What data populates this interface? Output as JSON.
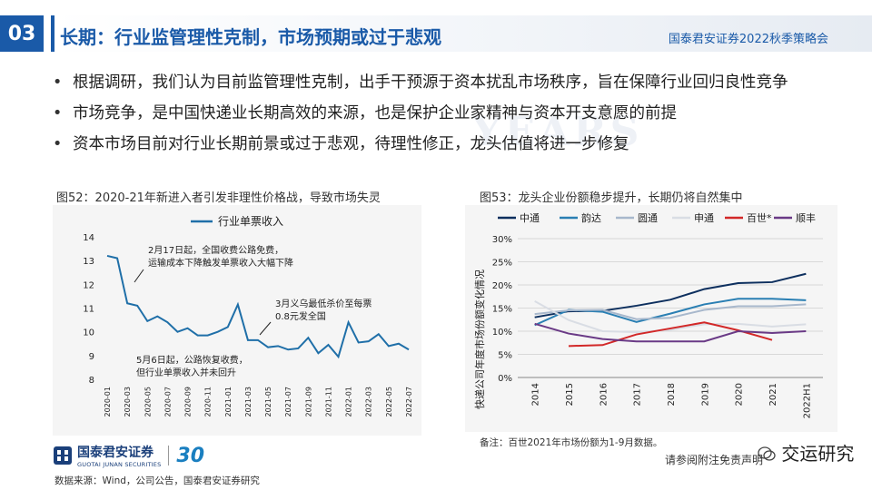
{
  "header": {
    "section_number": "03",
    "title": "长期：行业监管理性克制，市场预期或过于悲观",
    "corp_label": "国泰君安证券2022秋季策略会"
  },
  "background_text": "YEARS",
  "bullets": [
    "根据调研，我们认为目前监管理性克制，出手干预源于资本扰乱市场秩序，旨在保障行业回归良性竞争",
    "市场竞争，是中国快递业长期高效的来源，也是保护企业家精神与资本开支意愿的前提",
    "资本市场目前对行业长期前景或过于悲观，待理性修正，龙头估值将进一步修复"
  ],
  "bullet_symbol": "•",
  "figure52": {
    "caption": "图52：2020-21年新进入者引发非理性价格战，导致市场失灵",
    "annotations": [
      "2月17日起，全国收费公路免费，",
      "运输成本下降触发单票收入大幅下降",
      "3月义乌最低杀价至每票",
      "0.8元发全国",
      "5月6日起，公路恢复收费，",
      "但行业单票收入并未回升"
    ]
  },
  "figure53": {
    "caption": "图53：龙头企业份额稳步提升，长期仍将自然集中",
    "ylabel": "快递公司年度市场份额变化情况",
    "note": "备注：百世2021年市场份额为1-9月数据。"
  },
  "chart_data": [
    {
      "type": "line",
      "title": "",
      "legend": [
        "行业单票收入"
      ],
      "x": [
        "2020-01",
        "2020-02",
        "2020-03",
        "2020-04",
        "2020-05",
        "2020-06",
        "2020-07",
        "2020-08",
        "2020-09",
        "2020-10",
        "2020-11",
        "2020-12",
        "2021-01",
        "2021-02",
        "2021-03",
        "2021-04",
        "2021-05",
        "2021-06",
        "2021-07",
        "2021-08",
        "2021-09",
        "2021-10",
        "2021-11",
        "2021-12",
        "2022-01",
        "2022-02",
        "2022-03",
        "2022-04",
        "2022-05",
        "2022-06",
        "2022-07"
      ],
      "xticks": [
        "2020-01",
        "2020-03",
        "2020-05",
        "2020-07",
        "2020-09",
        "2020-11",
        "2021-01",
        "2021-03",
        "2021-05",
        "2021-07",
        "2021-09",
        "2021-11",
        "2022-01",
        "2022-03",
        "2022-05",
        "2022-07"
      ],
      "series": [
        {
          "name": "行业单票收入",
          "color": "#1f6fa8",
          "values": [
            13.2,
            13.1,
            11.2,
            11.1,
            10.45,
            10.65,
            10.4,
            10.0,
            10.15,
            9.85,
            9.85,
            10.0,
            10.2,
            11.15,
            9.65,
            9.65,
            9.35,
            9.4,
            9.25,
            9.3,
            9.75,
            9.1,
            9.45,
            8.95,
            10.4,
            9.55,
            9.6,
            9.9,
            9.4,
            9.5,
            9.25
          ]
        }
      ],
      "ylim": [
        8,
        14
      ],
      "yticks": [
        8,
        9,
        10,
        11,
        12,
        13,
        14
      ]
    },
    {
      "type": "line",
      "title": "",
      "ylabel": "快递公司年度市场份额变化情况",
      "x": [
        "2014",
        "2015",
        "2016",
        "2017",
        "2018",
        "2019",
        "2020",
        "2021",
        "2022H1"
      ],
      "ylim": [
        0,
        30
      ],
      "yticks": [
        "0%",
        "5%",
        "10%",
        "15%",
        "20%",
        "25%",
        "30%"
      ],
      "series": [
        {
          "name": "中通",
          "color": "#0d2f5e",
          "values": [
            13.0,
            14.3,
            14.4,
            15.5,
            16.8,
            19.1,
            20.4,
            20.6,
            22.4
          ]
        },
        {
          "name": "韵达",
          "color": "#2a7fb3",
          "values": [
            11.3,
            14.6,
            14.2,
            12.0,
            13.8,
            15.8,
            17.0,
            17.0,
            16.7
          ]
        },
        {
          "name": "圆通",
          "color": "#a8b8cc",
          "values": [
            13.7,
            14.5,
            14.6,
            12.6,
            12.9,
            14.6,
            15.4,
            15.4,
            15.8
          ]
        },
        {
          "name": "申通",
          "color": "#d9dde4",
          "values": [
            16.5,
            12.4,
            10.0,
            9.8,
            10.3,
            11.5,
            11.6,
            11.0,
            11.5
          ]
        },
        {
          "name": "百世*",
          "color": "#d22828",
          "values": [
            null,
            6.8,
            7.0,
            9.3,
            10.6,
            11.9,
            10.2,
            8.1,
            null
          ]
        },
        {
          "name": "顺丰",
          "color": "#6a3a86",
          "values": [
            11.6,
            9.5,
            8.3,
            7.8,
            7.8,
            7.8,
            10.0,
            9.6,
            10.0
          ]
        }
      ]
    }
  ],
  "footer": {
    "brand_name": "国泰君安证券",
    "brand_sub": "GUOTAI JUNAN SECURITIES",
    "anniversary": "30",
    "source": "数据来源：Wind，公司公告，国泰君安证券研究",
    "disclaimer": "请参阅附注免责声明",
    "wechat_label": "交运研究"
  }
}
